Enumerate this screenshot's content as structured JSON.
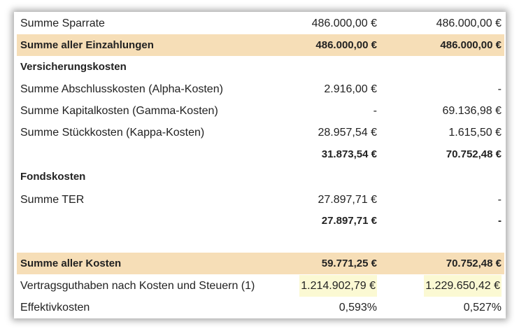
{
  "rows": [
    {
      "label": "Summe Sparrate",
      "v1": "486.000,00 €",
      "v2": "486.000,00 €"
    },
    {
      "label": "Summe aller Einzahlungen",
      "v1": "486.000,00 €",
      "v2": "486.000,00 €"
    },
    {
      "label": "Versicherungskosten",
      "v1": "",
      "v2": ""
    },
    {
      "label": "Summe Abschlusskosten (Alpha-Kosten)",
      "v1": "2.916,00 €",
      "v2": "-"
    },
    {
      "label": "Summe Kapitalkosten (Gamma-Kosten)",
      "v1": "-",
      "v2": "69.136,98 €"
    },
    {
      "label": "Summe Stückkosten (Kappa-Kosten)",
      "v1": "28.957,54 €",
      "v2": "1.615,50 €"
    },
    {
      "label": "",
      "v1": "31.873,54 €",
      "v2": "70.752,48 €"
    },
    {
      "label": "Fondskosten",
      "v1": "",
      "v2": ""
    },
    {
      "label": "Summe TER",
      "v1": "27.897,71 €",
      "v2": "-"
    },
    {
      "label": "",
      "v1": "27.897,71 €",
      "v2": "-"
    },
    {
      "label": "Summe aller Kosten",
      "v1": "59.771,25 €",
      "v2": "70.752,48 €"
    },
    {
      "label": "Vertragsguthaben nach Kosten und Steuern (1)",
      "v1": "1.214.902,79 €",
      "v2": "1.229.650,42 €"
    },
    {
      "label": "Effektivkosten",
      "v1": "0,593%",
      "v2": "0,527%"
    }
  ],
  "colors": {
    "highlight_row": "#f6deb7",
    "highlight_value": "#fbf9d3"
  }
}
